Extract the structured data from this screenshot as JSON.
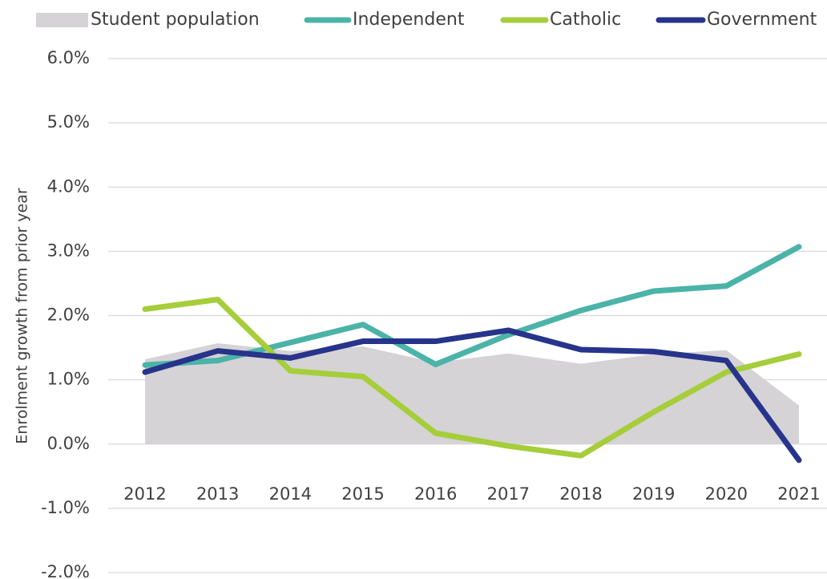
{
  "chart_data": {
    "type": "line",
    "y_label": "Enrolment growth from prior year",
    "categories": [
      "2012",
      "2013",
      "2014",
      "2015",
      "2016",
      "2017",
      "2018",
      "2019",
      "2020",
      "2021"
    ],
    "series": [
      {
        "name": "Student population",
        "type": "area",
        "color": "#d5d3d6",
        "values": [
          1.32,
          1.57,
          1.45,
          1.52,
          1.27,
          1.41,
          1.25,
          1.4,
          1.46,
          0.6
        ]
      },
      {
        "name": "Independent",
        "type": "line",
        "color": "#4bb3a8",
        "values": [
          1.23,
          1.3,
          1.58,
          1.86,
          1.24,
          1.7,
          2.08,
          2.38,
          2.46,
          3.07
        ]
      },
      {
        "name": "Catholic",
        "type": "line",
        "color": "#a6cd3a",
        "values": [
          2.1,
          2.25,
          1.14,
          1.05,
          0.17,
          -0.03,
          -0.18,
          0.5,
          1.12,
          1.4
        ]
      },
      {
        "name": "Government",
        "type": "line",
        "color": "#27348b",
        "values": [
          1.12,
          1.45,
          1.34,
          1.6,
          1.6,
          1.77,
          1.47,
          1.44,
          1.3,
          -0.25
        ]
      }
    ],
    "ylim": [
      -2,
      6
    ],
    "yticks": [
      {
        "value": -2,
        "label": "-2.0%"
      },
      {
        "value": -1,
        "label": "-1.0%"
      },
      {
        "value": 0,
        "label": "0.0%"
      },
      {
        "value": 1,
        "label": "1.0%"
      },
      {
        "value": 2,
        "label": "2.0%"
      },
      {
        "value": 3,
        "label": "3.0%"
      },
      {
        "value": 4,
        "label": "4.0%"
      },
      {
        "value": 5,
        "label": "5.0%"
      },
      {
        "value": 6,
        "label": "6.0%"
      }
    ],
    "grid": true
  }
}
